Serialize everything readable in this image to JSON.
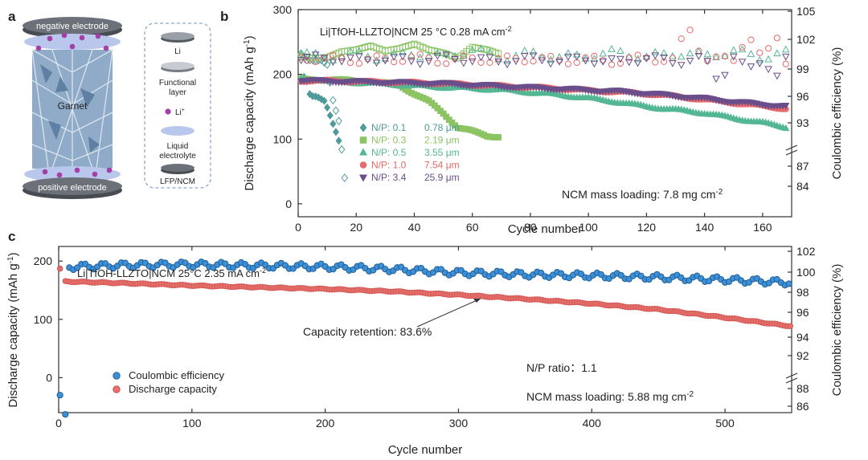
{
  "panel_labels": {
    "a": "a",
    "b": "b",
    "c": "c"
  },
  "schematic": {
    "top_label": "negative electrode",
    "bottom_label": "positive electrode",
    "center_label": "Garnet",
    "legend": [
      {
        "label": "Li",
        "icon": "li-disc-icon"
      },
      {
        "label": "Functional layer",
        "line1": "Functional",
        "line2": "layer",
        "icon": "functional-layer-icon"
      },
      {
        "label": "Li+",
        "base": "Li",
        "sup": "+",
        "icon": "li-ion-dot-icon"
      },
      {
        "label": "Liquid electrolyte",
        "line1": "Liquid",
        "line2": "electrolyte",
        "icon": "liquid-electrolyte-icon"
      },
      {
        "label": "LFP/NCM",
        "icon": "cathode-disc-icon"
      }
    ],
    "colors": {
      "electrode": "#5a5f66",
      "liquid": "#b9c7ec",
      "ion": "#a53ea6",
      "garnet": "#7d9cbd"
    }
  },
  "chart_data": [
    {
      "panel": "b",
      "type": "scatter",
      "title": "Li|TfOH-LLZTO|NCM   25 °C   0.28 mA cm",
      "title_sup": "-2",
      "xlabel": "Cycle number",
      "ylabel": "Discharge capacity (mAh g",
      "ylabel_sup": "-1",
      "ylabel_end": ")",
      "y2label": "Coulombic efficiency (%)",
      "xlim": [
        0,
        170
      ],
      "ylim": [
        -20,
        300
      ],
      "xticks": [
        0,
        20,
        40,
        60,
        80,
        100,
        120,
        140,
        160
      ],
      "yticks": [
        0,
        100,
        200,
        300
      ],
      "y2ticks": [
        "84",
        "87",
        "93",
        "96",
        "99",
        "102",
        "105"
      ],
      "note": "NCM mass loading: 7.8 mg cm",
      "note_sup": "-2",
      "series": [
        {
          "name": "N/P: 0.1",
          "thickness": "0.78 μm",
          "color": "#4f9a9a",
          "marker": "diamond",
          "capacity": [
            [
              1,
              193
            ],
            [
              2,
              195
            ],
            [
              3,
              188
            ],
            [
              4,
              168
            ],
            [
              5,
              165
            ],
            [
              6,
              165
            ],
            [
              7,
              164
            ],
            [
              8,
              162
            ],
            [
              9,
              160
            ],
            [
              10,
              150
            ],
            [
              11,
              138
            ],
            [
              12,
              125
            ],
            [
              13,
              112
            ],
            [
              14,
              98
            ]
          ],
          "ce": [
            [
              1,
              232
            ],
            [
              2,
              226
            ],
            [
              3,
              222
            ],
            [
              4,
              222
            ],
            [
              6,
              222
            ],
            [
              8,
              222
            ],
            [
              10,
              215
            ],
            [
              12,
              160
            ],
            [
              14,
              128
            ],
            [
              16,
              40
            ]
          ]
        },
        {
          "name": "N/P: 0.3",
          "thickness": "2.19 μm",
          "color": "#8cc464",
          "marker": "square",
          "capacity": [
            [
              1,
              192
            ],
            [
              5,
              192
            ],
            [
              10,
              192
            ],
            [
              15,
              191
            ],
            [
              20,
              190
            ],
            [
              25,
              189
            ],
            [
              30,
              186
            ],
            [
              35,
              183
            ],
            [
              40,
              170
            ],
            [
              45,
              158
            ],
            [
              50,
              140
            ],
            [
              55,
              118
            ],
            [
              60,
              112
            ],
            [
              65,
              105
            ],
            [
              69,
              104
            ]
          ],
          "ce": [
            [
              1,
              228
            ],
            [
              5,
              225
            ],
            [
              10,
              226
            ],
            [
              15,
              235
            ],
            [
              20,
              238
            ],
            [
              25,
              244
            ],
            [
              30,
              236
            ],
            [
              35,
              240
            ],
            [
              40,
              247
            ],
            [
              45,
              238
            ],
            [
              50,
              233
            ],
            [
              55,
              225
            ],
            [
              60,
              242
            ],
            [
              65,
              238
            ],
            [
              69,
              232
            ]
          ]
        },
        {
          "name": "N/P: 0.5",
          "thickness": "3.55 μm",
          "color": "#54b794",
          "marker": "triangle-up",
          "capacity": [
            [
              1,
              193
            ],
            [
              10,
              190
            ],
            [
              20,
              187
            ],
            [
              30,
              185
            ],
            [
              40,
              182
            ],
            [
              50,
              180
            ],
            [
              60,
              178
            ],
            [
              70,
              176
            ],
            [
              80,
              172
            ],
            [
              90,
              168
            ],
            [
              100,
              163
            ],
            [
              110,
              157
            ],
            [
              120,
              150
            ],
            [
              130,
              145
            ],
            [
              140,
              140
            ],
            [
              150,
              132
            ],
            [
              160,
              125
            ],
            [
              168,
              118
            ]
          ],
          "ce": [
            [
              1,
              230
            ],
            [
              10,
              226
            ],
            [
              20,
              232
            ],
            [
              30,
              225
            ],
            [
              40,
              233
            ],
            [
              50,
              226
            ],
            [
              60,
              238
            ],
            [
              70,
              225
            ],
            [
              80,
              232
            ],
            [
              90,
              226
            ],
            [
              100,
              228
            ],
            [
              110,
              234
            ],
            [
              120,
              226
            ],
            [
              130,
              233
            ],
            [
              140,
              228
            ],
            [
              150,
              235
            ],
            [
              160,
              226
            ],
            [
              168,
              232
            ]
          ]
        },
        {
          "name": "N/P: 1.0",
          "thickness": "7.54 μm",
          "color": "#e66a6a",
          "marker": "circle",
          "capacity": [
            [
              1,
              190
            ],
            [
              10,
              190
            ],
            [
              20,
              189
            ],
            [
              30,
              188
            ],
            [
              40,
              187
            ],
            [
              50,
              186
            ],
            [
              60,
              184
            ],
            [
              70,
              182
            ],
            [
              80,
              180
            ],
            [
              90,
              178
            ],
            [
              100,
              175
            ],
            [
              110,
              173
            ],
            [
              120,
              170
            ],
            [
              130,
              166
            ],
            [
              140,
              161
            ],
            [
              150,
              156
            ],
            [
              160,
              151
            ],
            [
              168,
              147
            ]
          ],
          "ce": [
            [
              1,
              226
            ],
            [
              10,
              224
            ],
            [
              20,
              222
            ],
            [
              30,
              223
            ],
            [
              40,
              226
            ],
            [
              50,
              221
            ],
            [
              60,
              224
            ],
            [
              70,
              222
            ],
            [
              80,
              225
            ],
            [
              90,
              221
            ],
            [
              100,
              223
            ],
            [
              110,
              220
            ],
            [
              120,
              226
            ],
            [
              130,
              221
            ],
            [
              134,
              278
            ],
            [
              140,
              224
            ],
            [
              150,
              222
            ],
            [
              155,
              265
            ],
            [
              160,
              220
            ],
            [
              166,
              265
            ],
            [
              168,
              222
            ]
          ]
        },
        {
          "name": "N/P: 3.4",
          "thickness": "25.9 μm",
          "color": "#6a4e8c",
          "marker": "triangle-down",
          "capacity": [
            [
              1,
              191
            ],
            [
              10,
              190
            ],
            [
              20,
              189
            ],
            [
              30,
              188
            ],
            [
              40,
              187
            ],
            [
              50,
              186
            ],
            [
              60,
              184
            ],
            [
              70,
              182
            ],
            [
              80,
              180
            ],
            [
              90,
              178
            ],
            [
              100,
              176
            ],
            [
              110,
              174
            ],
            [
              120,
              171
            ],
            [
              130,
              167
            ],
            [
              140,
              163
            ],
            [
              150,
              158
            ],
            [
              160,
              154
            ],
            [
              168,
              151
            ]
          ],
          "ce": [
            [
              1,
              224
            ],
            [
              10,
              226
            ],
            [
              20,
              222
            ],
            [
              30,
              225
            ],
            [
              40,
              221
            ],
            [
              50,
              226
            ],
            [
              60,
              223
            ],
            [
              70,
              221
            ],
            [
              80,
              225
            ],
            [
              90,
              222
            ],
            [
              100,
              224
            ],
            [
              110,
              219
            ],
            [
              120,
              226
            ],
            [
              130,
              220
            ],
            [
              140,
              224
            ],
            [
              145,
              190
            ],
            [
              150,
              228
            ],
            [
              155,
              205
            ],
            [
              160,
              225
            ],
            [
              165,
              198
            ],
            [
              168,
              222
            ]
          ]
        }
      ]
    },
    {
      "panel": "c",
      "type": "scatter",
      "title": "Li|TfOH-LLZTO|NCM    25°C   2.35 mA cm",
      "title_sup": "-2",
      "xlabel": "Cycle number",
      "ylabel": "Discharge capacity (mAh g",
      "ylabel_sup": "-1",
      "ylabel_end": ")",
      "y2label": "Coulombic efficiency (%)",
      "xlim": [
        0,
        550
      ],
      "ylim": [
        -60,
        225
      ],
      "xticks": [
        0,
        100,
        200,
        300,
        400,
        500
      ],
      "yticks": [
        0,
        100,
        200
      ],
      "y2ticks": [
        "86",
        "88",
        "92",
        "94",
        "96",
        "98",
        "100",
        "102"
      ],
      "annotation": "Capacity retention: 83.6%",
      "np_ratio": "N/P ratio：1.1",
      "note": "NCM mass loading: 5.88 mg cm",
      "note_sup": "-2",
      "series": [
        {
          "name": "Coulombic efficiency",
          "color": "#3d8fd6",
          "marker": "circle",
          "points": [
            [
              1,
              -30
            ],
            [
              5,
              -63
            ],
            [
              10,
              190
            ],
            [
              50,
              193
            ],
            [
              100,
              194
            ],
            [
              150,
              192
            ],
            [
              200,
              190
            ],
            [
              250,
              186
            ],
            [
              300,
              180
            ],
            [
              350,
              177
            ],
            [
              400,
              175
            ],
            [
              450,
              172
            ],
            [
              500,
              168
            ],
            [
              550,
              163
            ]
          ]
        },
        {
          "name": "Discharge capacity",
          "color": "#e8706c",
          "marker": "circle",
          "points": [
            [
              1,
              187
            ],
            [
              5,
              165
            ],
            [
              50,
              162
            ],
            [
              100,
              158
            ],
            [
              150,
              155
            ],
            [
              200,
              152
            ],
            [
              250,
              148
            ],
            [
              300,
              142
            ],
            [
              350,
              135
            ],
            [
              400,
              127
            ],
            [
              450,
              117
            ],
            [
              500,
              103
            ],
            [
              550,
              88
            ]
          ]
        }
      ]
    }
  ]
}
